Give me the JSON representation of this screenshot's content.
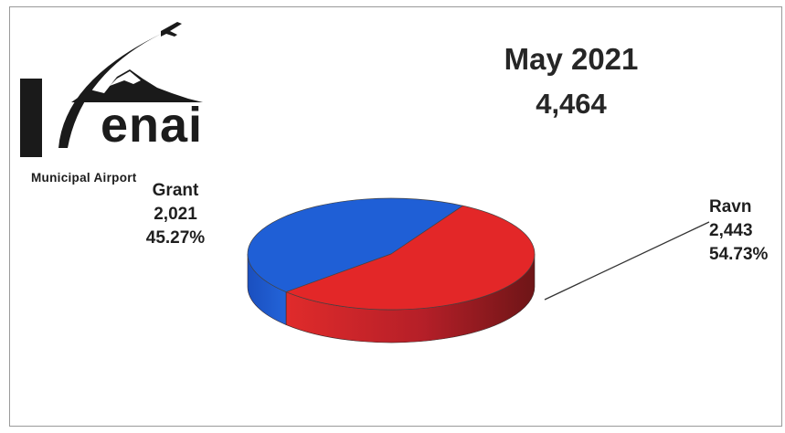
{
  "title": "May 2021",
  "total": "4,464",
  "logo": {
    "name": "enai",
    "subtitle": "Municipal Airport",
    "icon": "kenai-airport-logo-with-mountain-and-plane"
  },
  "chart_data": {
    "type": "pie",
    "style": "3d",
    "title": "May 2021",
    "subtitle": "4,464",
    "categories": [
      "Grant",
      "Ravn"
    ],
    "values": [
      2021,
      2443
    ],
    "percentages": [
      45.27,
      54.73
    ],
    "colors": [
      "#1f5fd6",
      "#e32728"
    ],
    "labels": [
      {
        "name": "Grant",
        "value": "2,021",
        "percent": "45.27%"
      },
      {
        "name": "Ravn",
        "value": "2,443",
        "percent": "54.73%"
      }
    ],
    "legend": "none"
  }
}
